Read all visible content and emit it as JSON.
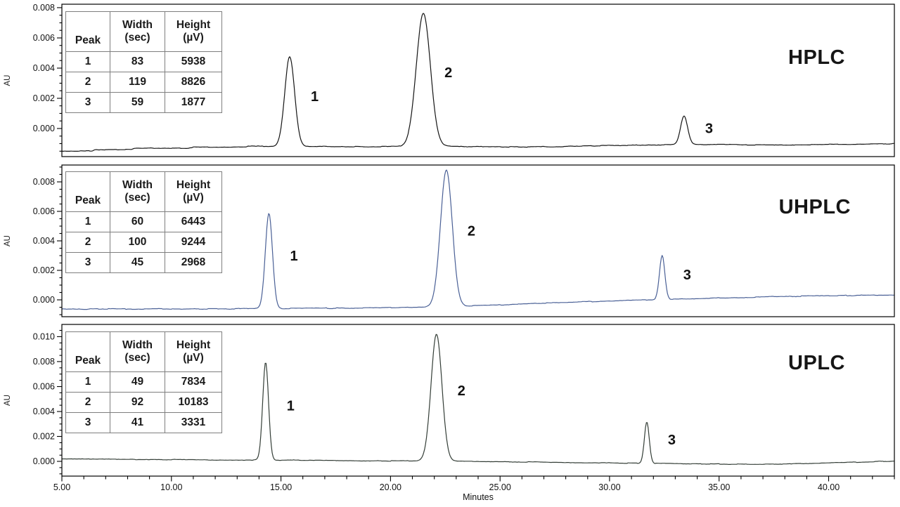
{
  "table_headers": {
    "peak": "Peak",
    "width_line1": "Width",
    "width_line2": "(sec)",
    "height_line1": "Height",
    "height_line2": "(µV)"
  },
  "chart_data": [
    {
      "type": "line",
      "title": "HPLC",
      "xlabel": "Minutes",
      "ylabel": "AU",
      "xlim": [
        5.0,
        43.0
      ],
      "ylim": [
        -0.00186,
        0.00823
      ],
      "x_ticks": [
        5,
        10,
        15,
        20,
        25,
        30,
        35,
        40
      ],
      "x_tick_labels": [
        "5.00",
        "10.00",
        "15.00",
        "20.00",
        "25.00",
        "30.00",
        "35.00",
        "40.00"
      ],
      "x_minor_step_min": 1,
      "y_ticks": [
        0.0,
        0.002,
        0.004,
        0.006,
        0.008
      ],
      "y_tick_labels": [
        "0.000",
        "0.002",
        "0.004",
        "0.006",
        "0.008"
      ],
      "y_minor_step": 0.0005,
      "grid": false,
      "line_color": "#151515",
      "peaks": [
        {
          "label": "1",
          "rt_min": 15.4,
          "width_sec": 83,
          "height_uv": 5938
        },
        {
          "label": "2",
          "rt_min": 21.5,
          "width_sec": 119,
          "height_uv": 8826
        },
        {
          "label": "3",
          "rt_min": 33.4,
          "width_sec": 59,
          "height_uv": 1877
        }
      ],
      "baseline_au": [
        [
          5,
          -0.0015
        ],
        [
          6.4,
          -0.00148
        ],
        [
          6.5,
          -0.0014
        ],
        [
          8.2,
          -0.00138
        ],
        [
          8.3,
          -0.00131
        ],
        [
          10.9,
          -0.0013
        ],
        [
          11,
          -0.00124
        ],
        [
          13.4,
          -0.00123
        ],
        [
          13.5,
          -0.00118
        ],
        [
          17,
          -0.00118
        ],
        [
          19,
          -0.0012
        ],
        [
          21,
          -0.00118
        ],
        [
          23.5,
          -0.0012
        ],
        [
          25.5,
          -0.00122
        ],
        [
          27.5,
          -0.0012
        ],
        [
          29,
          -0.00115
        ],
        [
          30.5,
          -0.00112
        ],
        [
          32,
          -0.0011
        ],
        [
          33.5,
          -0.00106
        ],
        [
          35,
          -0.00106
        ],
        [
          36.5,
          -0.00108
        ],
        [
          38.5,
          -0.00108
        ],
        [
          40,
          -0.00106
        ],
        [
          41.5,
          -0.00104
        ],
        [
          43,
          -0.001
        ]
      ],
      "table": {
        "columns": [
          "Peak",
          "Width (sec)",
          "Height (µV)"
        ],
        "rows": [
          [
            "1",
            "83",
            "5938"
          ],
          [
            "2",
            "119",
            "8826"
          ],
          [
            "3",
            "59",
            "1877"
          ]
        ]
      }
    },
    {
      "type": "line",
      "title": "UHPLC",
      "xlabel": "Minutes",
      "ylabel": "AU",
      "xlim": [
        5.0,
        43.0
      ],
      "ylim": [
        -0.00114,
        0.00914
      ],
      "x_ticks": [
        5,
        10,
        15,
        20,
        25,
        30,
        35,
        40
      ],
      "x_tick_labels": [
        "5.00",
        "10.00",
        "15.00",
        "20.00",
        "25.00",
        "30.00",
        "35.00",
        "40.00"
      ],
      "x_minor_step_min": 1,
      "y_ticks": [
        0.0,
        0.002,
        0.004,
        0.006,
        0.008
      ],
      "y_tick_labels": [
        "0.000",
        "0.002",
        "0.004",
        "0.006",
        "0.008"
      ],
      "y_minor_step": 0.0005,
      "grid": false,
      "line_color": "#4a6096",
      "peaks": [
        {
          "label": "1",
          "rt_min": 14.45,
          "width_sec": 60,
          "height_uv": 6443
        },
        {
          "label": "2",
          "rt_min": 22.55,
          "width_sec": 100,
          "height_uv": 9244
        },
        {
          "label": "3",
          "rt_min": 32.4,
          "width_sec": 45,
          "height_uv": 2968
        }
      ],
      "baseline_au": [
        [
          5,
          -0.00062
        ],
        [
          12,
          -0.00061
        ],
        [
          16,
          -0.00058
        ],
        [
          20,
          -0.00053
        ],
        [
          23,
          -0.00044
        ],
        [
          25,
          -0.00034
        ],
        [
          27,
          -0.00022
        ],
        [
          29,
          -0.00012
        ],
        [
          31,
          -3e-05
        ],
        [
          33,
          6e-05
        ],
        [
          35,
          0.00013
        ],
        [
          37,
          0.0002
        ],
        [
          39,
          0.00026
        ],
        [
          41,
          0.0003
        ],
        [
          43,
          0.00034
        ]
      ],
      "table": {
        "columns": [
          "Peak",
          "Width (sec)",
          "Height (µV)"
        ],
        "rows": [
          [
            "1",
            "60",
            "6443"
          ],
          [
            "2",
            "100",
            "9244"
          ],
          [
            "3",
            "45",
            "2968"
          ]
        ]
      }
    },
    {
      "type": "line",
      "title": "UPLC",
      "xlabel": "Minutes",
      "ylabel": "AU",
      "xlim": [
        5.0,
        43.0
      ],
      "ylim": [
        -0.00118,
        0.01098
      ],
      "x_ticks": [
        5,
        10,
        15,
        20,
        25,
        30,
        35,
        40
      ],
      "x_tick_labels": [
        "5.00",
        "10.00",
        "15.00",
        "20.00",
        "25.00",
        "30.00",
        "35.00",
        "40.00"
      ],
      "x_minor_step_min": 1,
      "y_ticks": [
        0.0,
        0.002,
        0.004,
        0.006,
        0.008,
        0.01
      ],
      "y_tick_labels": [
        "0.000",
        "0.002",
        "0.004",
        "0.006",
        "0.008",
        "0.010"
      ],
      "y_minor_step": 0.0005,
      "grid": false,
      "line_color": "#343e37",
      "peaks": [
        {
          "label": "1",
          "rt_min": 14.3,
          "width_sec": 49,
          "height_uv": 7834
        },
        {
          "label": "2",
          "rt_min": 22.1,
          "width_sec": 92,
          "height_uv": 10183
        },
        {
          "label": "3",
          "rt_min": 31.7,
          "width_sec": 41,
          "height_uv": 3331
        }
      ],
      "baseline_au": [
        [
          5,
          0.0002
        ],
        [
          8,
          0.00016
        ],
        [
          12,
          0.00012
        ],
        [
          15,
          0.0001
        ],
        [
          18,
          6e-05
        ],
        [
          21,
          3e-05
        ],
        [
          24,
          0.0
        ],
        [
          26,
          -4e-05
        ],
        [
          28,
          -8e-05
        ],
        [
          30,
          -0.00012
        ],
        [
          32,
          -0.00016
        ],
        [
          34,
          -0.0002
        ],
        [
          36,
          -0.00023
        ],
        [
          38,
          -0.00021
        ],
        [
          40,
          -0.00013
        ],
        [
          41.5,
          -5e-05
        ],
        [
          43,
          3e-05
        ]
      ],
      "table": {
        "columns": [
          "Peak",
          "Width (sec)",
          "Height (µV)"
        ],
        "rows": [
          [
            "1",
            "49",
            "7834"
          ],
          [
            "2",
            "92",
            "10183"
          ],
          [
            "3",
            "41",
            "3331"
          ]
        ]
      }
    }
  ]
}
